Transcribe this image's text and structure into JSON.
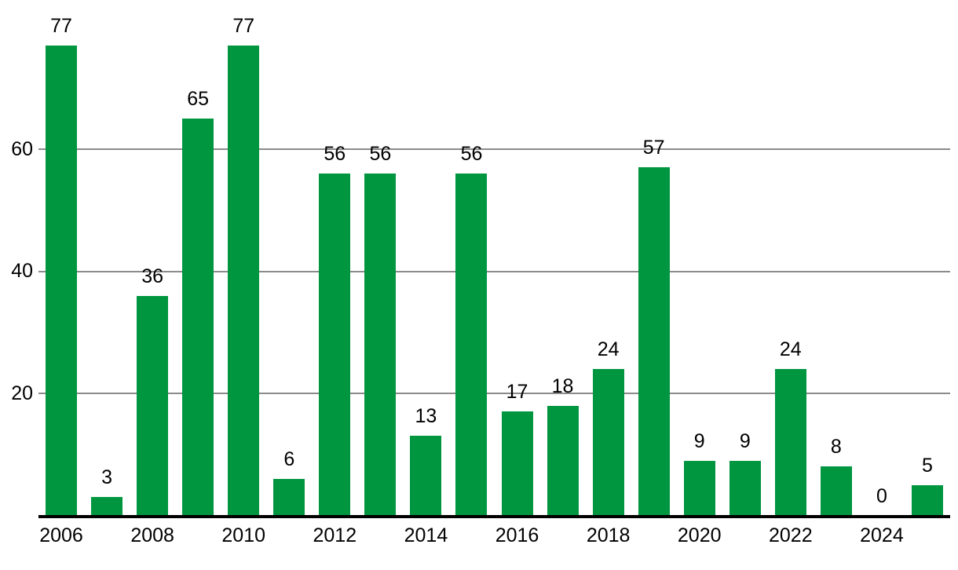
{
  "chart_data": {
    "type": "bar",
    "title": "",
    "xlabel": "",
    "ylabel": "",
    "categories": [
      "2006",
      "2007",
      "2008",
      "2009",
      "2010",
      "2011",
      "2012",
      "2013",
      "2014",
      "2015",
      "2016",
      "2017",
      "2018",
      "2019",
      "2020",
      "2021",
      "2022",
      "2023",
      "2024",
      "2025"
    ],
    "values": [
      77,
      3,
      36,
      65,
      77,
      6,
      56,
      56,
      13,
      56,
      17,
      18,
      24,
      57,
      9,
      9,
      24,
      8,
      0,
      5
    ],
    "bar_value_labels": [
      "77",
      "3",
      "36",
      "65",
      "77",
      "6",
      "56",
      "56",
      "13",
      "56",
      "17",
      "18",
      "24",
      "57",
      "9",
      "9",
      "24",
      "8",
      "0",
      "5"
    ],
    "xtick_labels": [
      "2006",
      "2008",
      "2010",
      "2012",
      "2014",
      "2016",
      "2018",
      "2020",
      "2022",
      "2024"
    ],
    "yticks": [
      20,
      40,
      60
    ],
    "ytick_labels": [
      "20",
      "40",
      "60"
    ],
    "ylim": [
      0,
      80
    ],
    "grid": true,
    "legend": "none",
    "colors": {
      "bar": "#009640",
      "gridline": "#8b8b8b",
      "axis": "#000000",
      "text": "#000000",
      "background": "#ffffff"
    }
  }
}
